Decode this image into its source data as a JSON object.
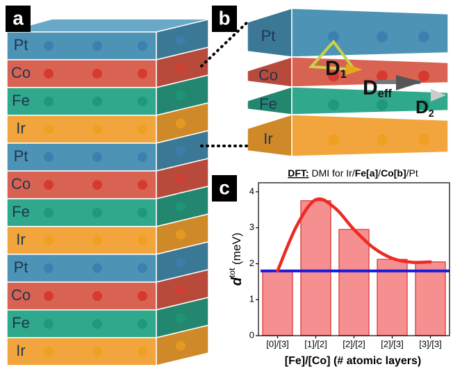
{
  "panel_labels": [
    "a",
    "b",
    "c"
  ],
  "panel_a": {
    "layers": [
      "Pt",
      "Co",
      "Fe",
      "Ir",
      "Pt",
      "Co",
      "Fe",
      "Ir",
      "Pt",
      "Co",
      "Fe",
      "Ir"
    ]
  },
  "panel_b": {
    "layers": [
      "Pt",
      "Co",
      "Fe",
      "Ir"
    ],
    "vectors": [
      {
        "main": "D",
        "sub": "1"
      },
      {
        "main": "D",
        "sub": "eff"
      },
      {
        "main": "D",
        "sub": "2"
      }
    ]
  },
  "chart_data": {
    "type": "bar",
    "title_parts": [
      "DFT:",
      " DMI for Ir/",
      "Fe[a]",
      "/",
      "Co[b]",
      "/Pt"
    ],
    "ylabel_parts": [
      "d",
      "tot",
      " (meV)"
    ],
    "xlabel": "[Fe]/[Co] (# atomic layers)",
    "categories": [
      "[0]/[3]",
      "[1]/[2]",
      "[2]/[2]",
      "[2]/[3]",
      "[3]/[3]"
    ],
    "values": [
      1.8,
      3.75,
      2.95,
      2.12,
      2.05
    ],
    "color": "#f47c7c",
    "ylim": [
      0,
      4.25
    ],
    "yticks": [
      0,
      1,
      2,
      3,
      4
    ],
    "reference_line": {
      "value": 1.8,
      "color": "#1a1adc"
    },
    "curve": {
      "color": "#ee2a24",
      "x": [
        0,
        0.5,
        1,
        1.5,
        2,
        2.5,
        3,
        3.5,
        4
      ],
      "values": [
        1.8,
        3.05,
        3.78,
        3.55,
        2.95,
        2.45,
        2.15,
        2.04,
        2.05
      ]
    }
  }
}
